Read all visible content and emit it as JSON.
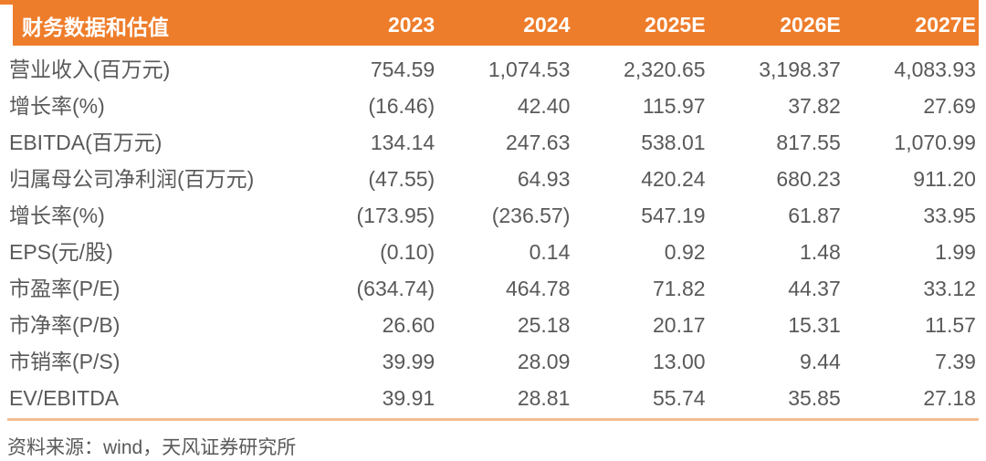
{
  "table": {
    "header": {
      "label": "财务数据和估值",
      "years": [
        "2023",
        "2024",
        "2025E",
        "2026E",
        "2027E"
      ]
    },
    "rows": [
      {
        "label": "营业收入(百万元)",
        "values": [
          "754.59",
          "1,074.53",
          "2,320.65",
          "3,198.37",
          "4,083.93"
        ]
      },
      {
        "label": "增长率(%)",
        "values": [
          "(16.46)",
          "42.40",
          "115.97",
          "37.82",
          "27.69"
        ]
      },
      {
        "label": "EBITDA(百万元)",
        "values": [
          "134.14",
          "247.63",
          "538.01",
          "817.55",
          "1,070.99"
        ]
      },
      {
        "label": "归属母公司净利润(百万元)",
        "values": [
          "(47.55)",
          "64.93",
          "420.24",
          "680.23",
          "911.20"
        ]
      },
      {
        "label": "增长率(%)",
        "values": [
          "(173.95)",
          "(236.57)",
          "547.19",
          "61.87",
          "33.95"
        ]
      },
      {
        "label": "EPS(元/股)",
        "values": [
          "(0.10)",
          "0.14",
          "0.92",
          "1.48",
          "1.99"
        ]
      },
      {
        "label": "市盈率(P/E)",
        "values": [
          "(634.74)",
          "464.78",
          "71.82",
          "44.37",
          "33.12"
        ]
      },
      {
        "label": "市净率(P/B)",
        "values": [
          "26.60",
          "25.18",
          "20.17",
          "15.31",
          "11.57"
        ]
      },
      {
        "label": "市销率(P/S)",
        "values": [
          "39.99",
          "28.09",
          "13.00",
          "9.44",
          "7.39"
        ]
      },
      {
        "label": "EV/EBITDA",
        "values": [
          "39.91",
          "28.81",
          "55.74",
          "35.85",
          "27.18"
        ]
      }
    ],
    "source_note": "资料来源：wind，天风证券研究所"
  },
  "colors": {
    "accent_orange": "#EE7D2B",
    "rule_orange": "#F3BE92",
    "text_gray": "#595959"
  }
}
